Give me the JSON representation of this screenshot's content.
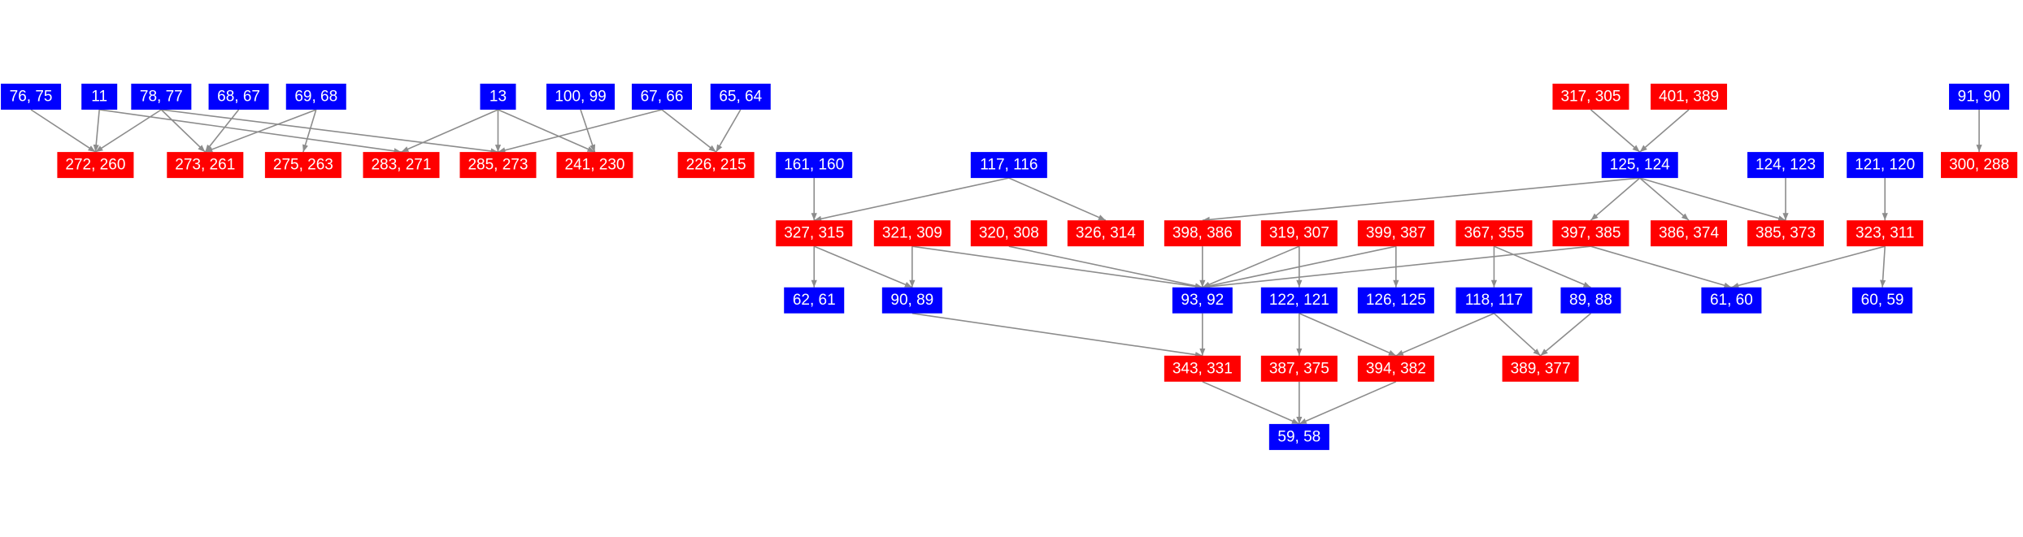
{
  "nodes": [
    {
      "label": "76, 75",
      "color": "blue"
    },
    {
      "label": "11",
      "color": "blue"
    },
    {
      "label": "78, 77",
      "color": "blue"
    },
    {
      "label": "68, 67",
      "color": "blue"
    },
    {
      "label": "69, 68",
      "color": "blue"
    },
    {
      "label": "13",
      "color": "blue"
    },
    {
      "label": "100, 99",
      "color": "blue"
    },
    {
      "label": "67, 66",
      "color": "blue"
    },
    {
      "label": "65, 64",
      "color": "blue"
    },
    {
      "label": "317, 305",
      "color": "red"
    },
    {
      "label": "401, 389",
      "color": "red"
    },
    {
      "label": "91, 90",
      "color": "blue"
    },
    {
      "label": "272, 260",
      "color": "red"
    },
    {
      "label": "273, 261",
      "color": "red"
    },
    {
      "label": "275, 263",
      "color": "red"
    },
    {
      "label": "283, 271",
      "color": "red"
    },
    {
      "label": "285, 273",
      "color": "red"
    },
    {
      "label": "241, 230",
      "color": "red"
    },
    {
      "label": "226, 215",
      "color": "red"
    },
    {
      "label": "161, 160",
      "color": "blue"
    },
    {
      "label": "117, 116",
      "color": "blue"
    },
    {
      "label": "125, 124",
      "color": "blue"
    },
    {
      "label": "124, 123",
      "color": "blue"
    },
    {
      "label": "121, 120",
      "color": "blue"
    },
    {
      "label": "300, 288",
      "color": "red"
    },
    {
      "label": "327, 315",
      "color": "red"
    },
    {
      "label": "321, 309",
      "color": "red"
    },
    {
      "label": "320, 308",
      "color": "red"
    },
    {
      "label": "326, 314",
      "color": "red"
    },
    {
      "label": "398, 386",
      "color": "red"
    },
    {
      "label": "319, 307",
      "color": "red"
    },
    {
      "label": "399, 387",
      "color": "red"
    },
    {
      "label": "367, 355",
      "color": "red"
    },
    {
      "label": "397, 385",
      "color": "red"
    },
    {
      "label": "386, 374",
      "color": "red"
    },
    {
      "label": "385, 373",
      "color": "red"
    },
    {
      "label": "323, 311",
      "color": "red"
    },
    {
      "label": "62, 61",
      "color": "blue"
    },
    {
      "label": "90, 89",
      "color": "blue"
    },
    {
      "label": "93, 92",
      "color": "blue"
    },
    {
      "label": "122, 121",
      "color": "blue"
    },
    {
      "label": "126, 125",
      "color": "blue"
    },
    {
      "label": "118, 117",
      "color": "blue"
    },
    {
      "label": "89, 88",
      "color": "blue"
    },
    {
      "label": "61, 60",
      "color": "blue"
    },
    {
      "label": "60, 59",
      "color": "blue"
    },
    {
      "label": "343, 331",
      "color": "red"
    },
    {
      "label": "387, 375",
      "color": "red"
    },
    {
      "label": "394, 382",
      "color": "red"
    },
    {
      "label": "389, 377",
      "color": "red"
    },
    {
      "label": "59, 58",
      "color": "blue"
    }
  ]
}
